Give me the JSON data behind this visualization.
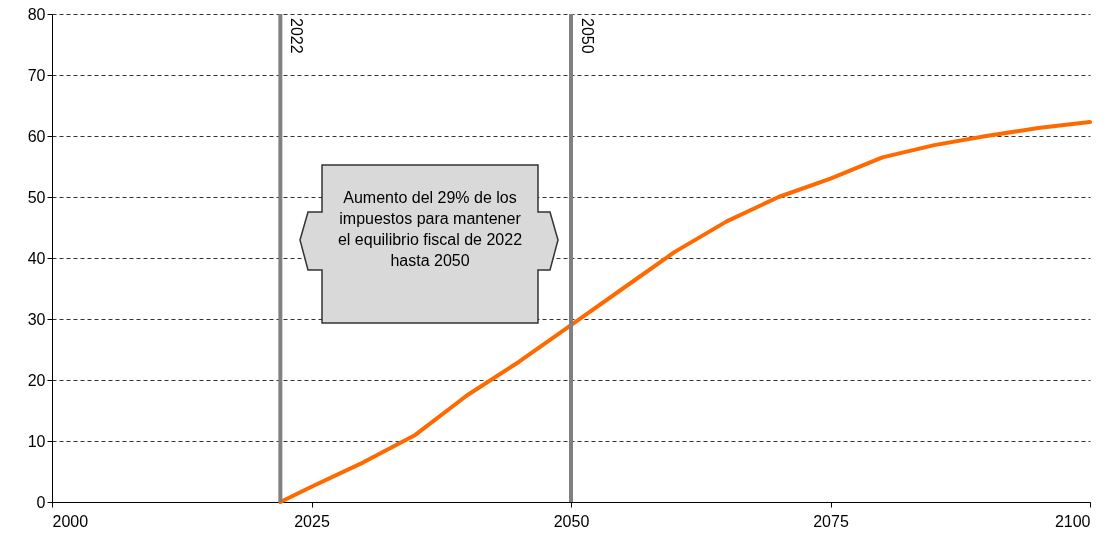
{
  "chart_data": {
    "type": "line",
    "x": [
      2022,
      2025,
      2030,
      2035,
      2040,
      2045,
      2050,
      2055,
      2060,
      2065,
      2070,
      2075,
      2080,
      2085,
      2090,
      2095,
      2100
    ],
    "series": [
      {
        "color": "#ff6a00",
        "values": [
          0,
          2.5,
          6.5,
          11,
          17.5,
          23,
          29,
          35,
          41,
          46,
          50,
          53,
          56.5,
          58.5,
          60,
          61.3,
          62.3
        ]
      }
    ],
    "xlim": [
      2000,
      2100
    ],
    "xticks": [
      2000,
      2025,
      2050,
      2075,
      2100
    ],
    "ylim": [
      0,
      80
    ],
    "yticks": [
      0,
      10,
      20,
      30,
      40,
      50,
      60,
      70,
      80
    ],
    "grid": "y",
    "marker": "none",
    "line_style": "solid",
    "ref_lines": [
      {
        "axis": "x",
        "value": 2022,
        "label": "2022",
        "color": "#808080"
      },
      {
        "axis": "x",
        "value": 2050,
        "label": "2050",
        "color": "#808080"
      }
    ],
    "annotations": [
      "Aumento del 29% de los impuestos para mantener el equilibrio fiscal de 2022 hasta 2050"
    ]
  }
}
